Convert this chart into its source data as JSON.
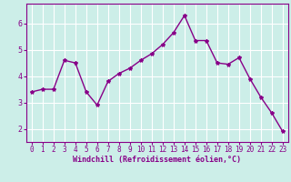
{
  "x": [
    0,
    1,
    2,
    3,
    4,
    5,
    6,
    7,
    8,
    9,
    10,
    11,
    12,
    13,
    14,
    15,
    16,
    17,
    18,
    19,
    20,
    21,
    22,
    23
  ],
  "y": [
    3.4,
    3.5,
    3.5,
    4.6,
    4.5,
    3.4,
    2.9,
    3.8,
    4.1,
    4.3,
    4.6,
    4.85,
    5.2,
    5.65,
    6.3,
    5.35,
    5.35,
    4.5,
    4.45,
    4.7,
    3.9,
    3.2,
    2.6,
    1.9
  ],
  "line_color": "#880088",
  "marker": "*",
  "marker_size": 3,
  "background_color": "#cceee8",
  "grid_color": "#ffffff",
  "xlabel": "Windchill (Refroidissement éolien,°C)",
  "xlabel_color": "#880088",
  "tick_color": "#880088",
  "spine_color": "#880088",
  "ylim": [
    1.5,
    6.75
  ],
  "xlim": [
    -0.5,
    23.5
  ],
  "yticks": [
    2,
    3,
    4,
    5,
    6
  ],
  "xticks": [
    0,
    1,
    2,
    3,
    4,
    5,
    6,
    7,
    8,
    9,
    10,
    11,
    12,
    13,
    14,
    15,
    16,
    17,
    18,
    19,
    20,
    21,
    22,
    23
  ],
  "linewidth": 1.0,
  "tick_fontsize": 5.5,
  "xlabel_fontsize": 6.0
}
